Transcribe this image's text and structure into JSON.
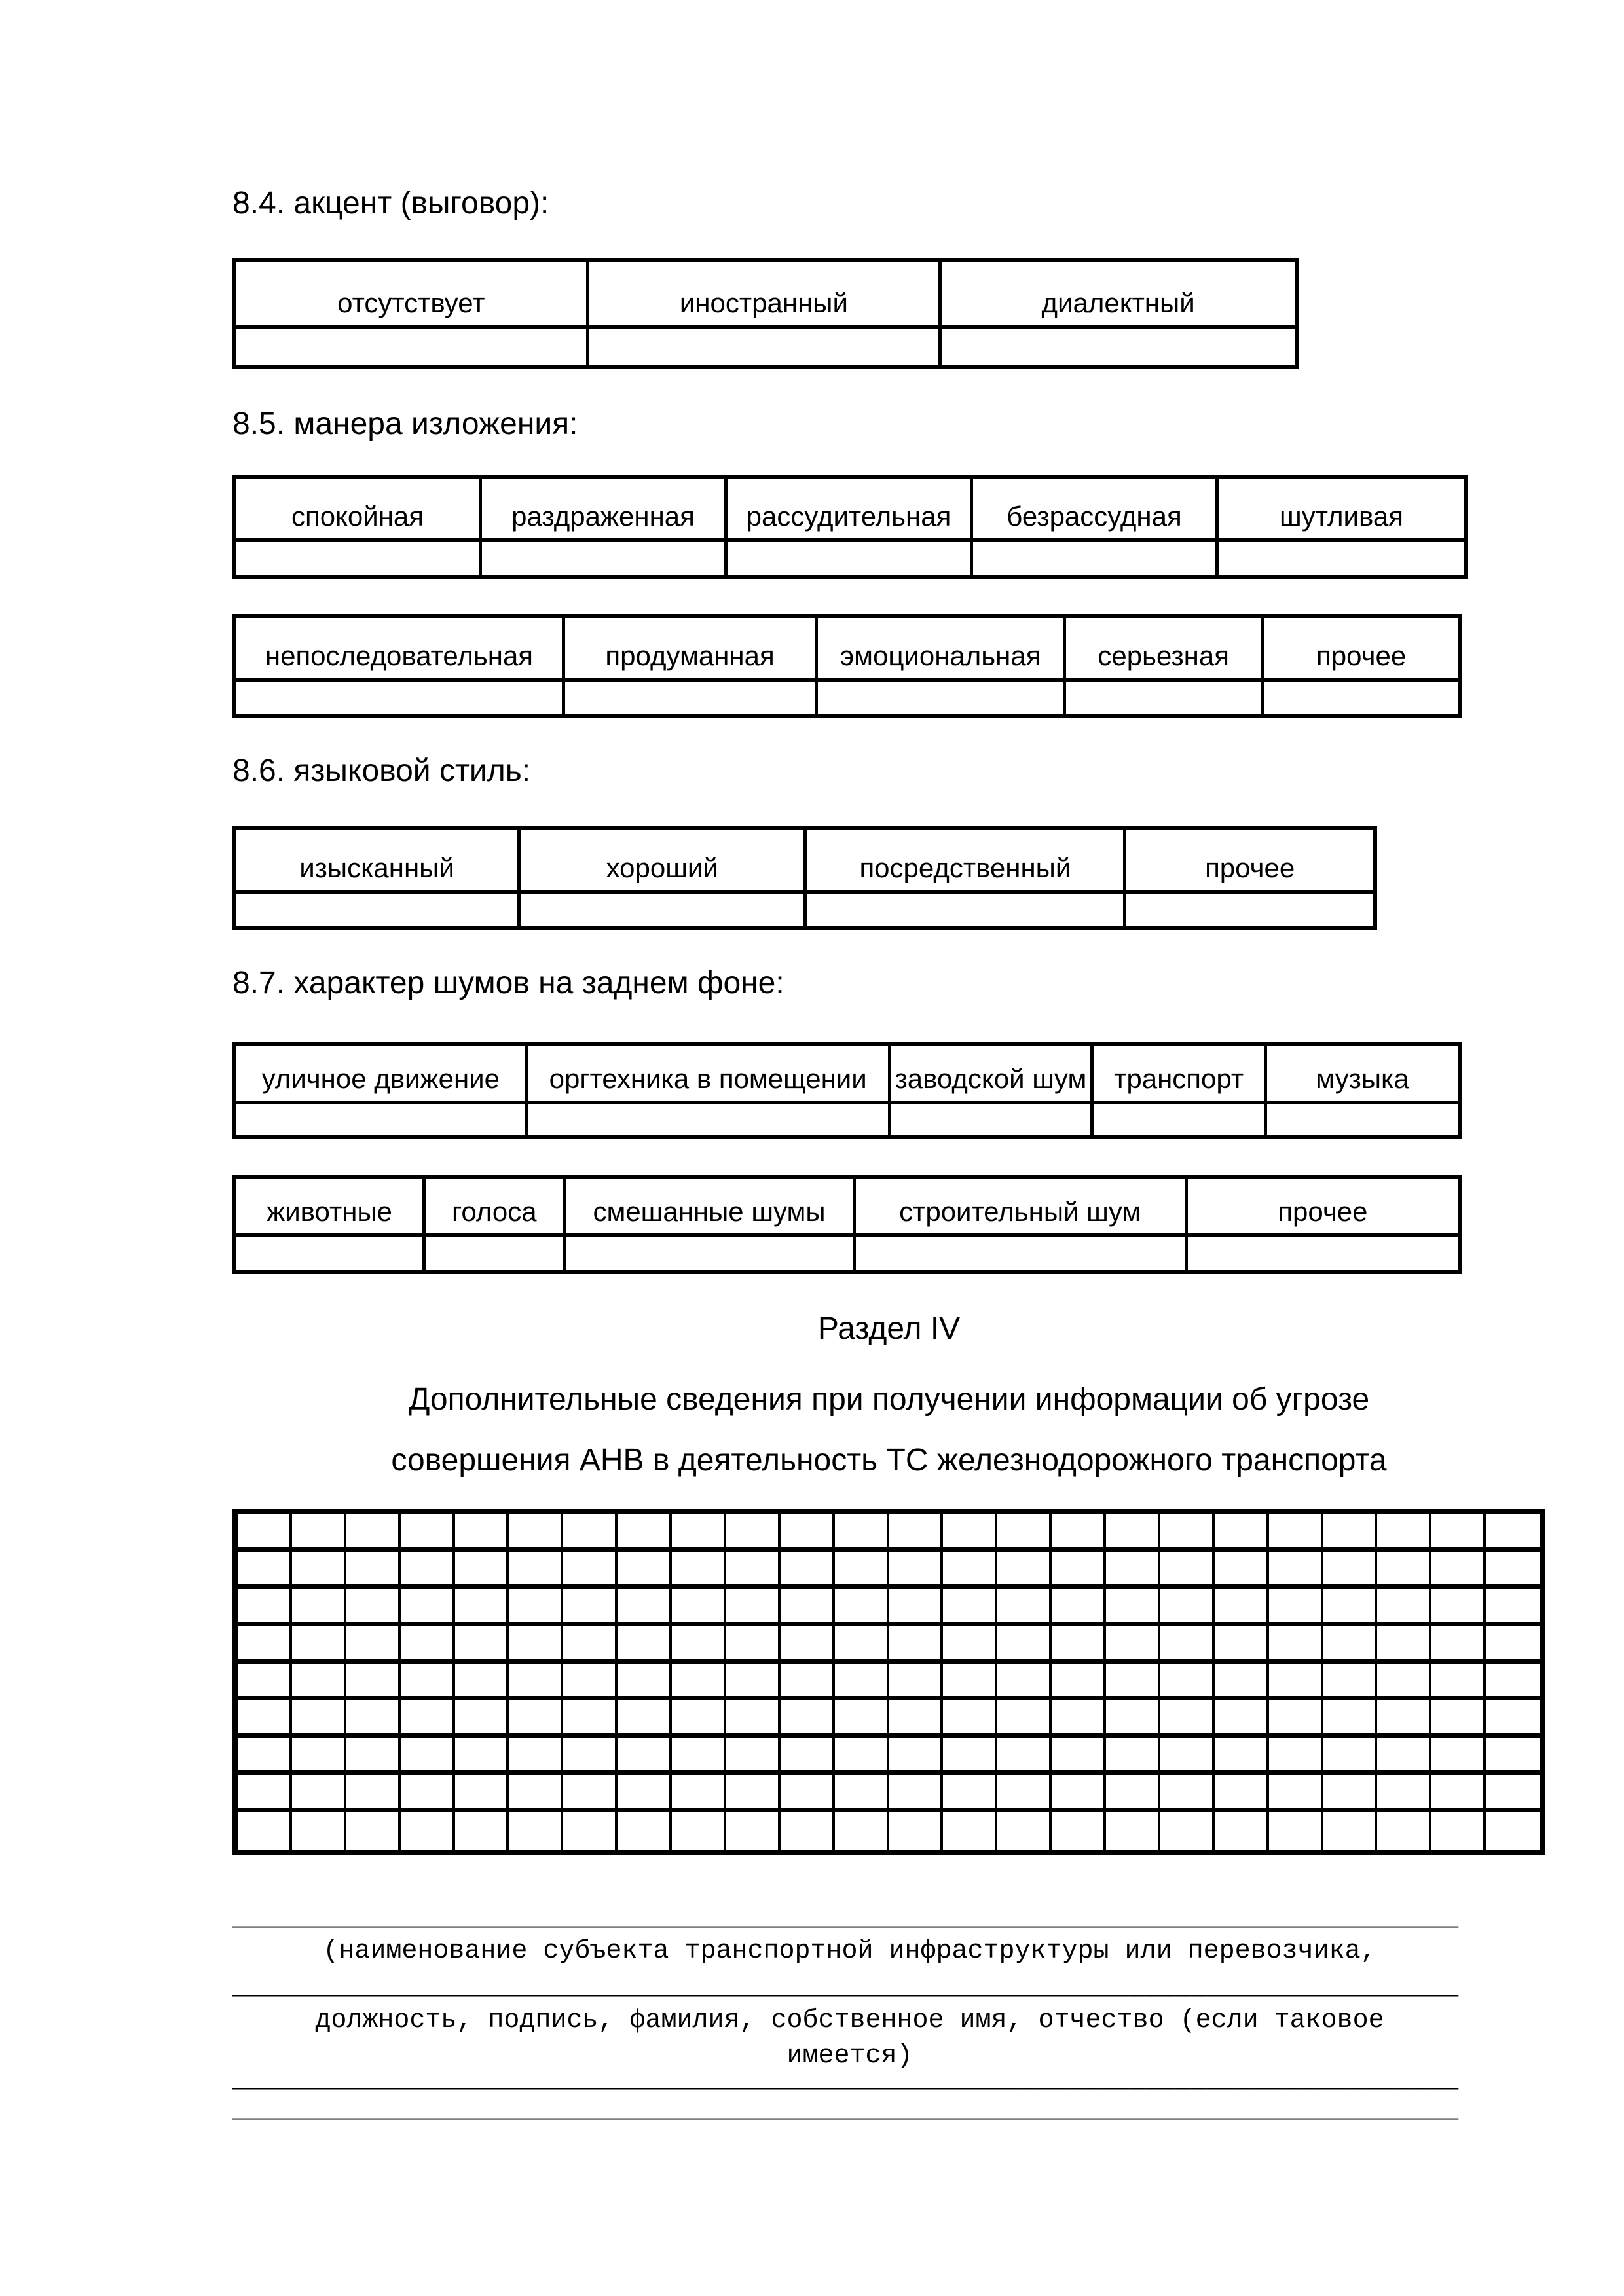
{
  "document": {
    "type": "form-page",
    "language": "ru",
    "background": "#ffffff",
    "ink": "#000000"
  },
  "headings": {
    "s84": "8.4. акцент (выговор):",
    "s85": "8.5. манера изложения:",
    "s86": "8.6. языковой стиль:",
    "s87": "8.7. характер шумов на заднем фоне:"
  },
  "choice_tables": [
    {
      "section": "8.4",
      "labels": [
        "отсутствует",
        "иностранный",
        "диалектный"
      ]
    },
    {
      "section": "8.5",
      "labels": [
        "спокойная",
        "раздраженная",
        "рассудительная",
        "безрассудная",
        "шутливая"
      ]
    },
    {
      "section": "8.5",
      "labels": [
        "непоследовательная",
        "продуманная",
        "эмоциональная",
        "серьезная",
        "прочее"
      ]
    },
    {
      "section": "8.6",
      "labels": [
        "изысканный",
        "хороший",
        "посредственный",
        "прочее"
      ]
    },
    {
      "section": "8.7",
      "labels": [
        "уличное движение",
        "оргтехника в помещении",
        "заводской шум",
        "транспорт",
        "музыка"
      ]
    },
    {
      "section": "8.7",
      "labels": [
        "животные",
        "голоса",
        "смешанные шумы",
        "строительный шум",
        "прочее"
      ]
    }
  ],
  "section4": {
    "title": "Раздел IV",
    "line1": "Дополнительные сведения при получении информации об угрозе",
    "line2": "совершения АНВ в деятельность ТС железнодорожного транспорта"
  },
  "answer_grid": {
    "rows": 9,
    "columns": 24
  },
  "footer": {
    "line": "______________________________________________________________________________",
    "caption1": "(наименование субъекта транспортной инфраструктуры или перевозчика,",
    "caption2": "должность, подпись, фамилия, собственное имя, отчество (если таковое",
    "caption2_cont": "имеется)"
  }
}
